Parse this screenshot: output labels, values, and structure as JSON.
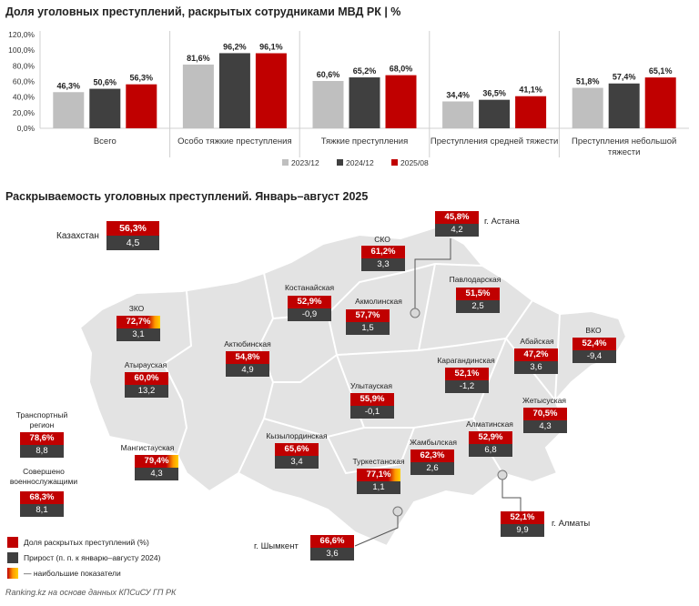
{
  "chart_title": "Доля уголовных преступлений, раскрытых сотрудниками МВД РК | %",
  "chart_data": {
    "type": "bar",
    "categories": [
      "Всего",
      "Особо тяжкие преступления",
      "Тяжкие преступления",
      "Преступления средней тяжести",
      "Преступления небольшой тяжести"
    ],
    "series": [
      {
        "name": "2023/12",
        "color": "#bfbfbf",
        "values": [
          46.3,
          81.6,
          60.6,
          34.4,
          51.8
        ],
        "labels": [
          "46,3%",
          "81,6%",
          "60,6%",
          "34,4%",
          "51,8%"
        ]
      },
      {
        "name": "2024/12",
        "color": "#404040",
        "values": [
          50.6,
          96.2,
          65.2,
          36.5,
          57.4
        ],
        "labels": [
          "50,6%",
          "96,2%",
          "65,2%",
          "36,5%",
          "57,4%"
        ]
      },
      {
        "name": "2025/08",
        "color": "#c00000",
        "values": [
          56.3,
          96.1,
          68.0,
          41.1,
          65.1
        ],
        "labels": [
          "56,3%",
          "96,1%",
          "68,0%",
          "41,1%",
          "65,1%"
        ]
      }
    ],
    "ylim": [
      0,
      120
    ],
    "yticks": [
      "0,0%",
      "20,0%",
      "40,0%",
      "60,0%",
      "80,0%",
      "100,0%",
      "120,0%"
    ],
    "grid": false,
    "legend": "bottom"
  },
  "map": {
    "title": "Раскрываемость уголовных преступлений. Январь–август 2025",
    "kazakhstan": {
      "label": "Казахстан",
      "pct": "56,3%",
      "growth": "4,5"
    },
    "regions": [
      {
        "id": "sko",
        "label": "СКО",
        "pct": "61,2%",
        "growth": "3,3",
        "highlight": false
      },
      {
        "id": "astana",
        "label": "г. Астана",
        "pct": "45,8%",
        "growth": "4,2",
        "highlight": false
      },
      {
        "id": "kostanay",
        "label": "Костанайская",
        "pct": "52,9%",
        "growth": "-0,9",
        "highlight": false
      },
      {
        "id": "akmola",
        "label": "Акмолинская",
        "pct": "57,7%",
        "growth": "1,5",
        "highlight": false
      },
      {
        "id": "pavlodar",
        "label": "Павлодарская",
        "pct": "51,5%",
        "growth": "2,5",
        "highlight": false
      },
      {
        "id": "zko",
        "label": "ЗКО",
        "pct": "72,7%",
        "growth": "3,1",
        "highlight": true
      },
      {
        "id": "aktobe",
        "label": "Актюбинская",
        "pct": "54,8%",
        "growth": "4,9",
        "highlight": false
      },
      {
        "id": "abay",
        "label": "Абайская",
        "pct": "47,2%",
        "growth": "3,6",
        "highlight": false
      },
      {
        "id": "vko",
        "label": "ВКО",
        "pct": "52,4%",
        "growth": "-9,4",
        "highlight": false
      },
      {
        "id": "atyrau",
        "label": "Атырауская",
        "pct": "60,0%",
        "growth": "13,2",
        "highlight": false
      },
      {
        "id": "karaganda",
        "label": "Карагандинская",
        "pct": "52,1%",
        "growth": "-1,2",
        "highlight": false
      },
      {
        "id": "ulytau",
        "label": "Улытауская",
        "pct": "55,9%",
        "growth": "-0,1",
        "highlight": false
      },
      {
        "id": "zhetysu",
        "label": "Жетысуская",
        "pct": "70,5%",
        "growth": "4,3",
        "highlight": false
      },
      {
        "id": "transport",
        "label": "Транспортный регион",
        "pct": "78,6%",
        "growth": "8,8",
        "highlight": false
      },
      {
        "id": "kyzylorda",
        "label": "Кызылординская",
        "pct": "65,6%",
        "growth": "3,4",
        "highlight": false
      },
      {
        "id": "mangystau",
        "label": "Мангистауская",
        "pct": "79,4%",
        "growth": "4,3",
        "highlight": true
      },
      {
        "id": "zhambyl",
        "label": "Жамбылская",
        "pct": "62,3%",
        "growth": "2,6",
        "highlight": false
      },
      {
        "id": "almaty_obl",
        "label": "Алматинская",
        "pct": "52,9%",
        "growth": "6,8",
        "highlight": false
      },
      {
        "id": "turkestan",
        "label": "Туркестанская",
        "pct": "77,1%",
        "growth": "1,1",
        "highlight": true
      },
      {
        "id": "military",
        "label": "Совершено военнослужащими",
        "pct": "68,3%",
        "growth": "8,1",
        "highlight": false
      },
      {
        "id": "almaty",
        "label": "г. Алматы",
        "pct": "52,1%",
        "growth": "9,9",
        "highlight": false
      },
      {
        "id": "shymkent",
        "label": "г. Шымкент",
        "pct": "66,6%",
        "growth": "3,6",
        "highlight": false
      }
    ],
    "legend": [
      {
        "label": "Доля раскрытых преступлений (%)",
        "color": "#c00000"
      },
      {
        "label": "Прирост (п. п. к январю–августу 2024)",
        "color": "#3f3f3f"
      },
      {
        "label": "— наибольшие показатели",
        "color": "#ff9a00"
      }
    ]
  },
  "source": "Ranking.kz на основе данных КПСиСУ ГП РК"
}
